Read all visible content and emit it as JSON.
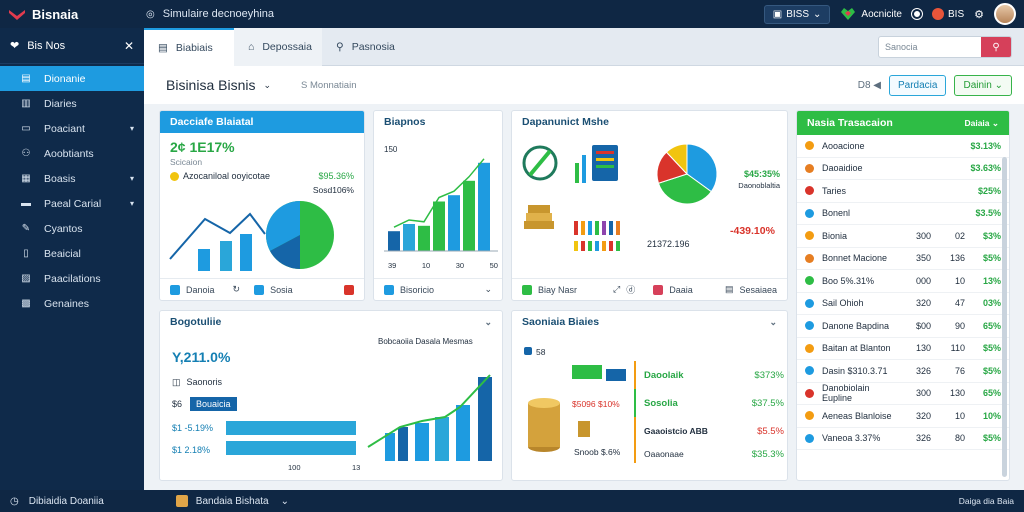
{
  "topbar": {
    "brand": "Bisnaia",
    "app_title": "Simulaire decnoeyhina",
    "btn_label": "BISS",
    "user_label": "Aocnicite",
    "badge": "BIS"
  },
  "sidebar": {
    "header": "Bis Nos",
    "items": [
      {
        "label": "Dionanie"
      },
      {
        "label": "Diaries"
      },
      {
        "label": "Poaciant"
      },
      {
        "label": "Aoobtiants"
      },
      {
        "label": "Boasis"
      },
      {
        "label": "Paeal Carial"
      },
      {
        "label": "Cyantos"
      },
      {
        "label": "Beaicial"
      },
      {
        "label": "Paacilations"
      },
      {
        "label": "Genaines"
      }
    ]
  },
  "tabs": [
    {
      "label": "Biabiais"
    },
    {
      "label": "Depossaia"
    },
    {
      "label": "Pasnosia"
    }
  ],
  "search": {
    "placeholder": "Sanocia"
  },
  "page": {
    "title": "Bisinisa Bisnis",
    "crumb": "S Monnatiain",
    "pill1": "Pardacia",
    "pill2": "Dainin"
  },
  "cards": {
    "overview": {
      "title": "Dacciafe Blaiatal",
      "value": "2¢ 1E17%",
      "sub": "Scicaion",
      "line": "Azocaniloal ooyicotae",
      "amount": "$95.36%",
      "amount2": "Sosd106%",
      "foot1": "Danoia",
      "foot2": "Sosia"
    },
    "bar": {
      "title": "Biapnos",
      "y_label": "150",
      "x_labels": [
        "39",
        "10",
        "30",
        "50"
      ],
      "foot": "Bisoricio"
    },
    "market": {
      "title": "Dapanunict Mshe",
      "v1": "$45:35%",
      "v2": "Daonoblaltia",
      "v3": "21372.196",
      "v4": "-439.10%",
      "foot1": "Biay Nasr",
      "foot2": "Daaia",
      "foot3": "Sesaiaea"
    },
    "bottom_left": {
      "title": "Bogotuliie",
      "sub": "Bobcaoiia Dasala Mesmas",
      "value": "Y,211.0%",
      "label1": "Saonoris",
      "tag": "Bouaicia",
      "r1": "-5.19%",
      "r2": "2.18%",
      "x1": "100",
      "x2": "13"
    },
    "bottom_mid": {
      "title": "Saoniaia Biaies",
      "tag": "58",
      "rows": [
        {
          "name": "Daoolaik",
          "val": "$373%"
        },
        {
          "name": "Sosolia",
          "val": "$37.5%"
        },
        {
          "name": "Gaaoistcio ABB",
          "val": "$5.5%"
        },
        {
          "name": "Oaaonaae",
          "val": "$35.3%"
        }
      ],
      "left1": "$5096 $10%",
      "left2": "Snoob $.6%"
    },
    "list": {
      "title": "Nasia Trasacaion",
      "tab": "Daiaia",
      "rows": [
        {
          "name": "Aooacione",
          "a": "",
          "b": "",
          "c": "$3.13%",
          "color": "#f39c12"
        },
        {
          "name": "Daoaidioe",
          "a": "",
          "b": "",
          "c": "$3.63%",
          "color": "#e67e22"
        },
        {
          "name": "Taries",
          "a": "",
          "b": "",
          "c": "$25%",
          "color": "#d9342b"
        },
        {
          "name": "Bonenl",
          "a": "",
          "b": "",
          "c": "$3.5%",
          "color": "#1e9be0"
        },
        {
          "name": "Bionia",
          "a": "300",
          "b": "02",
          "c": "$3%",
          "color": "#f39c12"
        },
        {
          "name": "Bonnet Macione",
          "a": "350",
          "b": "136",
          "c": "$5%",
          "color": "#e67e22"
        },
        {
          "name": "Boo 5%.31%",
          "a": "000",
          "b": "10",
          "c": "13%",
          "color": "#2ebd45"
        },
        {
          "name": "Sail Ohioh",
          "a": "320",
          "b": "47",
          "c": "03%",
          "color": "#1e9be0"
        },
        {
          "name": "Danone Bapdina",
          "a": "$00",
          "b": "90",
          "c": "65%",
          "color": "#1e9be0"
        },
        {
          "name": "Baitan at Blanton",
          "a": "130",
          "b": "110",
          "c": "$5%",
          "color": "#f39c12"
        },
        {
          "name": "Dasin $310.3.71",
          "a": "326",
          "b": "76",
          "c": "$5%",
          "color": "#1e9be0"
        },
        {
          "name": "Danobiolain Eupline",
          "a": "300",
          "b": "130",
          "c": "65%",
          "color": "#d9342b"
        },
        {
          "name": "Aeneas Blanloise",
          "a": "320",
          "b": "10",
          "c": "10%",
          "color": "#f39c12"
        },
        {
          "name": "Vaneoa 3.37%",
          "a": "326",
          "b": "80",
          "c": "$5%",
          "color": "#1e9be0"
        }
      ]
    }
  },
  "bottombar": {
    "left": "Dibiaidia Doaniia",
    "mid": "Bandaia Bishata",
    "right": "Daiga dia Baia"
  },
  "chart_data": [
    {
      "type": "bar",
      "categories": [
        "1",
        "2",
        "3",
        "4",
        "5",
        "6",
        "7"
      ],
      "values": [
        22,
        30,
        28,
        55,
        62,
        78,
        98
      ],
      "ylim": [
        0,
        100
      ]
    },
    {
      "type": "pie",
      "categories": [
        "blue",
        "green",
        "red",
        "yellow"
      ],
      "values": [
        35,
        35,
        18,
        12
      ]
    }
  ],
  "colors": {
    "accent": "#1e9be0",
    "positive": "#28a745",
    "negative": "#d9342b",
    "dark": "#0f2744"
  }
}
